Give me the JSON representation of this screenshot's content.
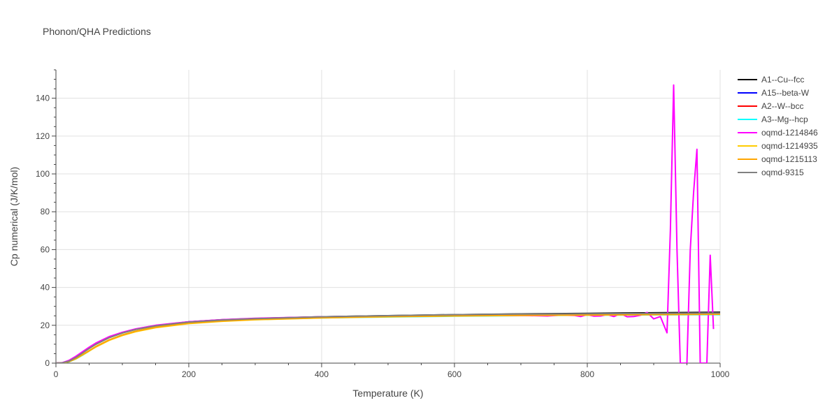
{
  "chart_data": {
    "type": "line",
    "title": "Phonon/QHA Predictions",
    "xlabel": "Temperature (K)",
    "ylabel": "Cp numerical (J/K/mol)",
    "xlim": [
      0,
      1000
    ],
    "ylim": [
      0,
      155
    ],
    "xticks": [
      0,
      200,
      400,
      600,
      800,
      1000
    ],
    "yticks": [
      0,
      20,
      40,
      60,
      80,
      100,
      120,
      140
    ],
    "grid": true,
    "legend_position": "right",
    "series": [
      {
        "name": "A1--Cu--fcc",
        "color": "#000000",
        "x": [
          0,
          10,
          20,
          30,
          40,
          50,
          60,
          80,
          100,
          120,
          150,
          200,
          250,
          300,
          400,
          500,
          600,
          700,
          800,
          900,
          1000
        ],
        "y": [
          0,
          0.2,
          1.2,
          3.2,
          5.5,
          7.9,
          10.1,
          13.6,
          16.1,
          17.9,
          19.8,
          21.8,
          22.9,
          23.6,
          24.5,
          25.1,
          25.6,
          26.0,
          26.3,
          26.6,
          26.9
        ]
      },
      {
        "name": "A15--beta-W",
        "color": "#0000ff",
        "x": [
          0,
          10,
          20,
          30,
          40,
          50,
          60,
          80,
          100,
          120,
          150,
          200,
          250,
          300,
          400,
          500,
          600,
          700,
          800,
          900,
          1000
        ],
        "y": [
          0,
          0.2,
          1.3,
          3.4,
          5.8,
          8.2,
          10.4,
          13.8,
          16.2,
          18.0,
          19.9,
          21.8,
          22.8,
          23.5,
          24.3,
          24.8,
          25.2,
          25.5,
          25.7,
          25.9,
          26.1
        ]
      },
      {
        "name": "A2--W--bcc",
        "color": "#ff0000",
        "x": [
          0,
          10,
          20,
          30,
          40,
          50,
          60,
          80,
          100,
          120,
          150,
          200,
          250,
          300,
          400,
          500,
          600,
          700,
          800,
          900,
          1000
        ],
        "y": [
          0,
          0.2,
          1.2,
          3.2,
          5.6,
          8.0,
          10.2,
          13.6,
          16.0,
          17.8,
          19.7,
          21.6,
          22.6,
          23.3,
          24.1,
          24.6,
          25.0,
          25.3,
          25.5,
          25.7,
          25.9
        ]
      },
      {
        "name": "A3--Mg--hcp",
        "color": "#00ffff",
        "x": [
          0,
          10,
          20,
          30,
          40,
          50,
          60,
          80,
          100,
          120,
          150,
          200,
          250,
          300,
          400,
          500,
          600,
          700,
          800,
          900,
          1000
        ],
        "y": [
          0,
          0.1,
          0.7,
          2.2,
          4.2,
          6.4,
          8.6,
          12.2,
          14.9,
          16.9,
          19.0,
          21.1,
          22.3,
          23.0,
          23.9,
          24.4,
          24.8,
          25.1,
          25.3,
          25.5,
          25.6
        ]
      },
      {
        "name": "oqmd-1214846",
        "color": "#ff00ff",
        "x": [
          0,
          10,
          20,
          30,
          40,
          50,
          60,
          80,
          100,
          120,
          150,
          200,
          250,
          300,
          400,
          500,
          600,
          700,
          740,
          760,
          780,
          790,
          800,
          810,
          820,
          830,
          840,
          850,
          860,
          870,
          880,
          890,
          900,
          910,
          920,
          925,
          930,
          935,
          940,
          945,
          950,
          955,
          960,
          965,
          970,
          975,
          980,
          985,
          990
        ],
        "y": [
          0,
          0.3,
          1.5,
          3.6,
          6.0,
          8.4,
          10.6,
          14.0,
          16.3,
          18.1,
          20.0,
          21.9,
          23.0,
          23.7,
          24.5,
          24.9,
          25.1,
          25.2,
          24.9,
          25.4,
          25.2,
          24.6,
          25.6,
          24.8,
          24.9,
          25.7,
          24.6,
          26.2,
          24.5,
          24.6,
          25.3,
          26.8,
          23.4,
          24.6,
          16.0,
          70.0,
          147.0,
          60.0,
          0,
          0,
          0,
          60.0,
          90.0,
          113.0,
          0,
          0,
          0,
          57.0,
          18.0
        ]
      },
      {
        "name": "oqmd-1214935",
        "color": "#ffcc00",
        "x": [
          0,
          10,
          20,
          30,
          40,
          50,
          60,
          80,
          100,
          120,
          150,
          200,
          250,
          300,
          400,
          500,
          600,
          700,
          800,
          900,
          1000
        ],
        "y": [
          0,
          0.1,
          0.8,
          2.3,
          4.3,
          6.4,
          8.5,
          12.0,
          14.6,
          16.6,
          18.7,
          20.9,
          22.1,
          22.9,
          23.9,
          24.5,
          24.9,
          25.2,
          25.4,
          25.6,
          25.8
        ]
      },
      {
        "name": "oqmd-1215113",
        "color": "#ffa500",
        "x": [
          0,
          10,
          20,
          30,
          40,
          50,
          60,
          80,
          100,
          120,
          150,
          200,
          250,
          300,
          400,
          500,
          600,
          700,
          800,
          900,
          1000
        ],
        "y": [
          0,
          0.1,
          0.8,
          2.4,
          4.5,
          6.6,
          8.8,
          12.3,
          14.9,
          16.9,
          19.0,
          21.2,
          22.3,
          23.1,
          24.0,
          24.6,
          25.0,
          25.3,
          25.5,
          25.7,
          25.9
        ]
      },
      {
        "name": "oqmd-9315",
        "color": "#808080",
        "x": [
          0,
          10,
          20,
          30,
          40,
          50,
          60,
          80,
          100,
          120,
          150,
          200,
          250,
          300,
          400,
          500,
          600,
          700,
          800,
          900,
          1000
        ],
        "y": [
          0,
          0.2,
          1.1,
          3.0,
          5.3,
          7.7,
          9.9,
          13.4,
          15.9,
          17.8,
          19.7,
          21.7,
          22.8,
          23.5,
          24.5,
          25.1,
          25.6,
          25.9,
          26.1,
          26.3,
          26.5
        ]
      }
    ]
  }
}
